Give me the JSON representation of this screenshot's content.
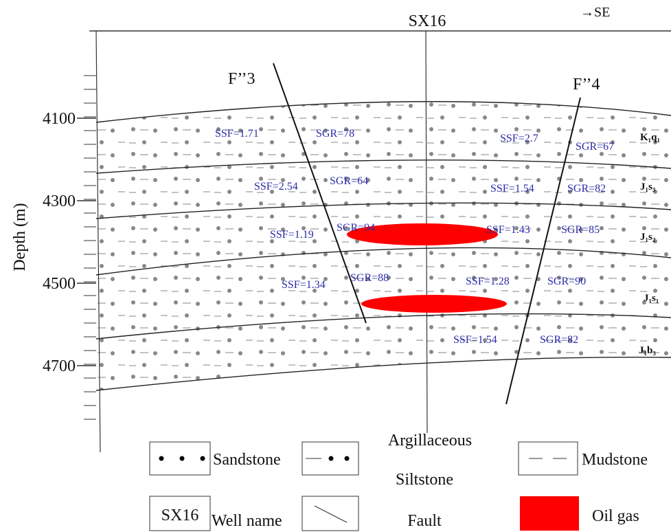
{
  "header": {
    "well": "SX16",
    "direction": "→SE"
  },
  "faults": [
    "F’’3",
    "F’’4"
  ],
  "depth_axis": {
    "label": "Depth (m)",
    "ticks": [
      4100,
      4300,
      4500,
      4700
    ]
  },
  "layers": [
    {
      "name": "K₁q₁",
      "labels": [
        "SSF=1.71",
        "SGR=78",
        "SSF=2.7",
        "SGR=67"
      ]
    },
    {
      "name": "J₁s₃",
      "labels": [
        "SSF=2.54",
        "SGR=64",
        "SSF=1.54",
        "SGR=82"
      ]
    },
    {
      "name": "J₁s₂",
      "labels": [
        "SSF=1.19",
        "SGR=94",
        "SSF=1.43",
        "SGR=85"
      ]
    },
    {
      "name": "J₁s₁",
      "labels": [
        "SSF=1.34",
        "SGR=88",
        "SSF=1.28",
        "SGR=90"
      ]
    },
    {
      "name": "J₁b₃",
      "labels": [
        "SSF=1.54",
        "SGR=82"
      ]
    }
  ],
  "legend": {
    "sandstone": "Sandstone",
    "siltstone": [
      "Argillaceous",
      "Siltstone"
    ],
    "mudstone": "Mudstone",
    "well_symbol": "SX16",
    "well_name": "Well name",
    "fault": "Fault",
    "oil_gas": "Oil gas"
  }
}
